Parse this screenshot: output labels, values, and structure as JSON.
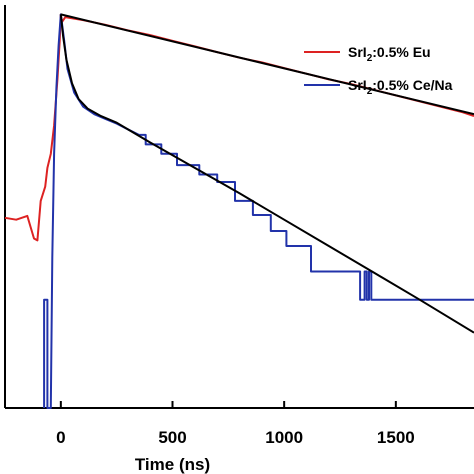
{
  "chart_data": {
    "type": "line",
    "xlabel": "Time (ns)",
    "ylabel": "",
    "xlim": [
      -250,
      1850
    ],
    "ylog": true,
    "ylim_log10": [
      -4.2,
      0.08
    ],
    "x_ticks": [
      {
        "value": 0,
        "label": "0"
      },
      {
        "value": 500,
        "label": "500"
      },
      {
        "value": 1000,
        "label": "1000"
      },
      {
        "value": 1500,
        "label": "1500"
      }
    ],
    "legend_position": "top-right",
    "series": [
      {
        "name": "SrI",
        "name_subscript": "2",
        "name_suffix": ":0.5% Eu",
        "color": "#dd2222",
        "kind": "data",
        "points": [
          [
            -250,
            -2.18
          ],
          [
            -200,
            -2.2
          ],
          [
            -150,
            -2.16
          ],
          [
            -120,
            -2.4
          ],
          [
            -105,
            -2.42
          ],
          [
            -90,
            -2.0
          ],
          [
            -70,
            -1.85
          ],
          [
            -60,
            -1.65
          ],
          [
            -45,
            -1.5
          ],
          [
            -30,
            -1.2
          ],
          [
            -15,
            -0.7
          ],
          [
            -5,
            -0.3
          ],
          [
            0,
            -0.02
          ],
          [
            5,
            -0.1
          ],
          [
            20,
            -0.05
          ],
          [
            100,
            -0.08
          ],
          [
            200,
            -0.13
          ],
          [
            300,
            -0.19
          ],
          [
            400,
            -0.24
          ],
          [
            500,
            -0.3
          ],
          [
            600,
            -0.36
          ],
          [
            700,
            -0.42
          ],
          [
            800,
            -0.48
          ],
          [
            900,
            -0.53
          ],
          [
            1000,
            -0.59
          ],
          [
            1100,
            -0.65
          ],
          [
            1200,
            -0.71
          ],
          [
            1300,
            -0.76
          ],
          [
            1400,
            -0.82
          ],
          [
            1500,
            -0.88
          ],
          [
            1600,
            -0.94
          ],
          [
            1700,
            -1.0
          ],
          [
            1800,
            -1.06
          ],
          [
            1850,
            -1.1
          ]
        ]
      },
      {
        "name": "SrI",
        "name_subscript": "2",
        "name_suffix": ":0.5% Ce/Na",
        "color": "#2233aa",
        "kind": "data",
        "points": [
          [
            -75,
            -4.2
          ],
          [
            -75,
            -3.05
          ],
          [
            -60,
            -3.05
          ],
          [
            -60,
            -4.2
          ],
          [
            -45,
            -4.2
          ],
          [
            -38,
            -2.6
          ],
          [
            -30,
            -1.5
          ],
          [
            -20,
            -0.8
          ],
          [
            -10,
            -0.35
          ],
          [
            0,
            -0.02
          ],
          [
            15,
            -0.3
          ],
          [
            30,
            -0.6
          ],
          [
            60,
            -0.85
          ],
          [
            100,
            -1.0
          ],
          [
            150,
            -1.08
          ],
          [
            200,
            -1.13
          ],
          [
            250,
            -1.18
          ],
          [
            300,
            -1.24
          ],
          [
            350,
            -1.3
          ],
          [
            380,
            -1.3
          ],
          [
            380,
            -1.4
          ],
          [
            450,
            -1.4
          ],
          [
            450,
            -1.5
          ],
          [
            520,
            -1.5
          ],
          [
            520,
            -1.62
          ],
          [
            620,
            -1.62
          ],
          [
            620,
            -1.72
          ],
          [
            700,
            -1.72
          ],
          [
            700,
            -1.8
          ],
          [
            780,
            -1.8
          ],
          [
            780,
            -2.0
          ],
          [
            860,
            -2.0
          ],
          [
            860,
            -2.15
          ],
          [
            940,
            -2.15
          ],
          [
            940,
            -2.32
          ],
          [
            1010,
            -2.32
          ],
          [
            1010,
            -2.48
          ],
          [
            1120,
            -2.48
          ],
          [
            1120,
            -2.75
          ],
          [
            1340,
            -2.75
          ],
          [
            1340,
            -3.05
          ],
          [
            1360,
            -3.05
          ],
          [
            1360,
            -2.75
          ],
          [
            1370,
            -2.75
          ],
          [
            1370,
            -3.05
          ],
          [
            1380,
            -3.05
          ],
          [
            1380,
            -2.75
          ],
          [
            1390,
            -2.75
          ],
          [
            1390,
            -3.05
          ],
          [
            1850,
            -3.05
          ]
        ]
      },
      {
        "name": "",
        "color": "#000000",
        "kind": "fit",
        "points": [
          [
            0,
            -0.02
          ],
          [
            1850,
            -1.08
          ]
        ]
      },
      {
        "name": "",
        "color": "#000000",
        "kind": "fit",
        "points": [
          [
            0,
            -0.02
          ],
          [
            10,
            -0.25
          ],
          [
            25,
            -0.5
          ],
          [
            50,
            -0.75
          ],
          [
            80,
            -0.92
          ],
          [
            120,
            -1.02
          ],
          [
            180,
            -1.1
          ],
          [
            250,
            -1.17
          ],
          [
            400,
            -1.38
          ],
          [
            600,
            -1.65
          ],
          [
            800,
            -1.92
          ],
          [
            1000,
            -2.2
          ],
          [
            1200,
            -2.48
          ],
          [
            1400,
            -2.76
          ],
          [
            1600,
            -3.04
          ],
          [
            1850,
            -3.4
          ]
        ]
      }
    ]
  }
}
